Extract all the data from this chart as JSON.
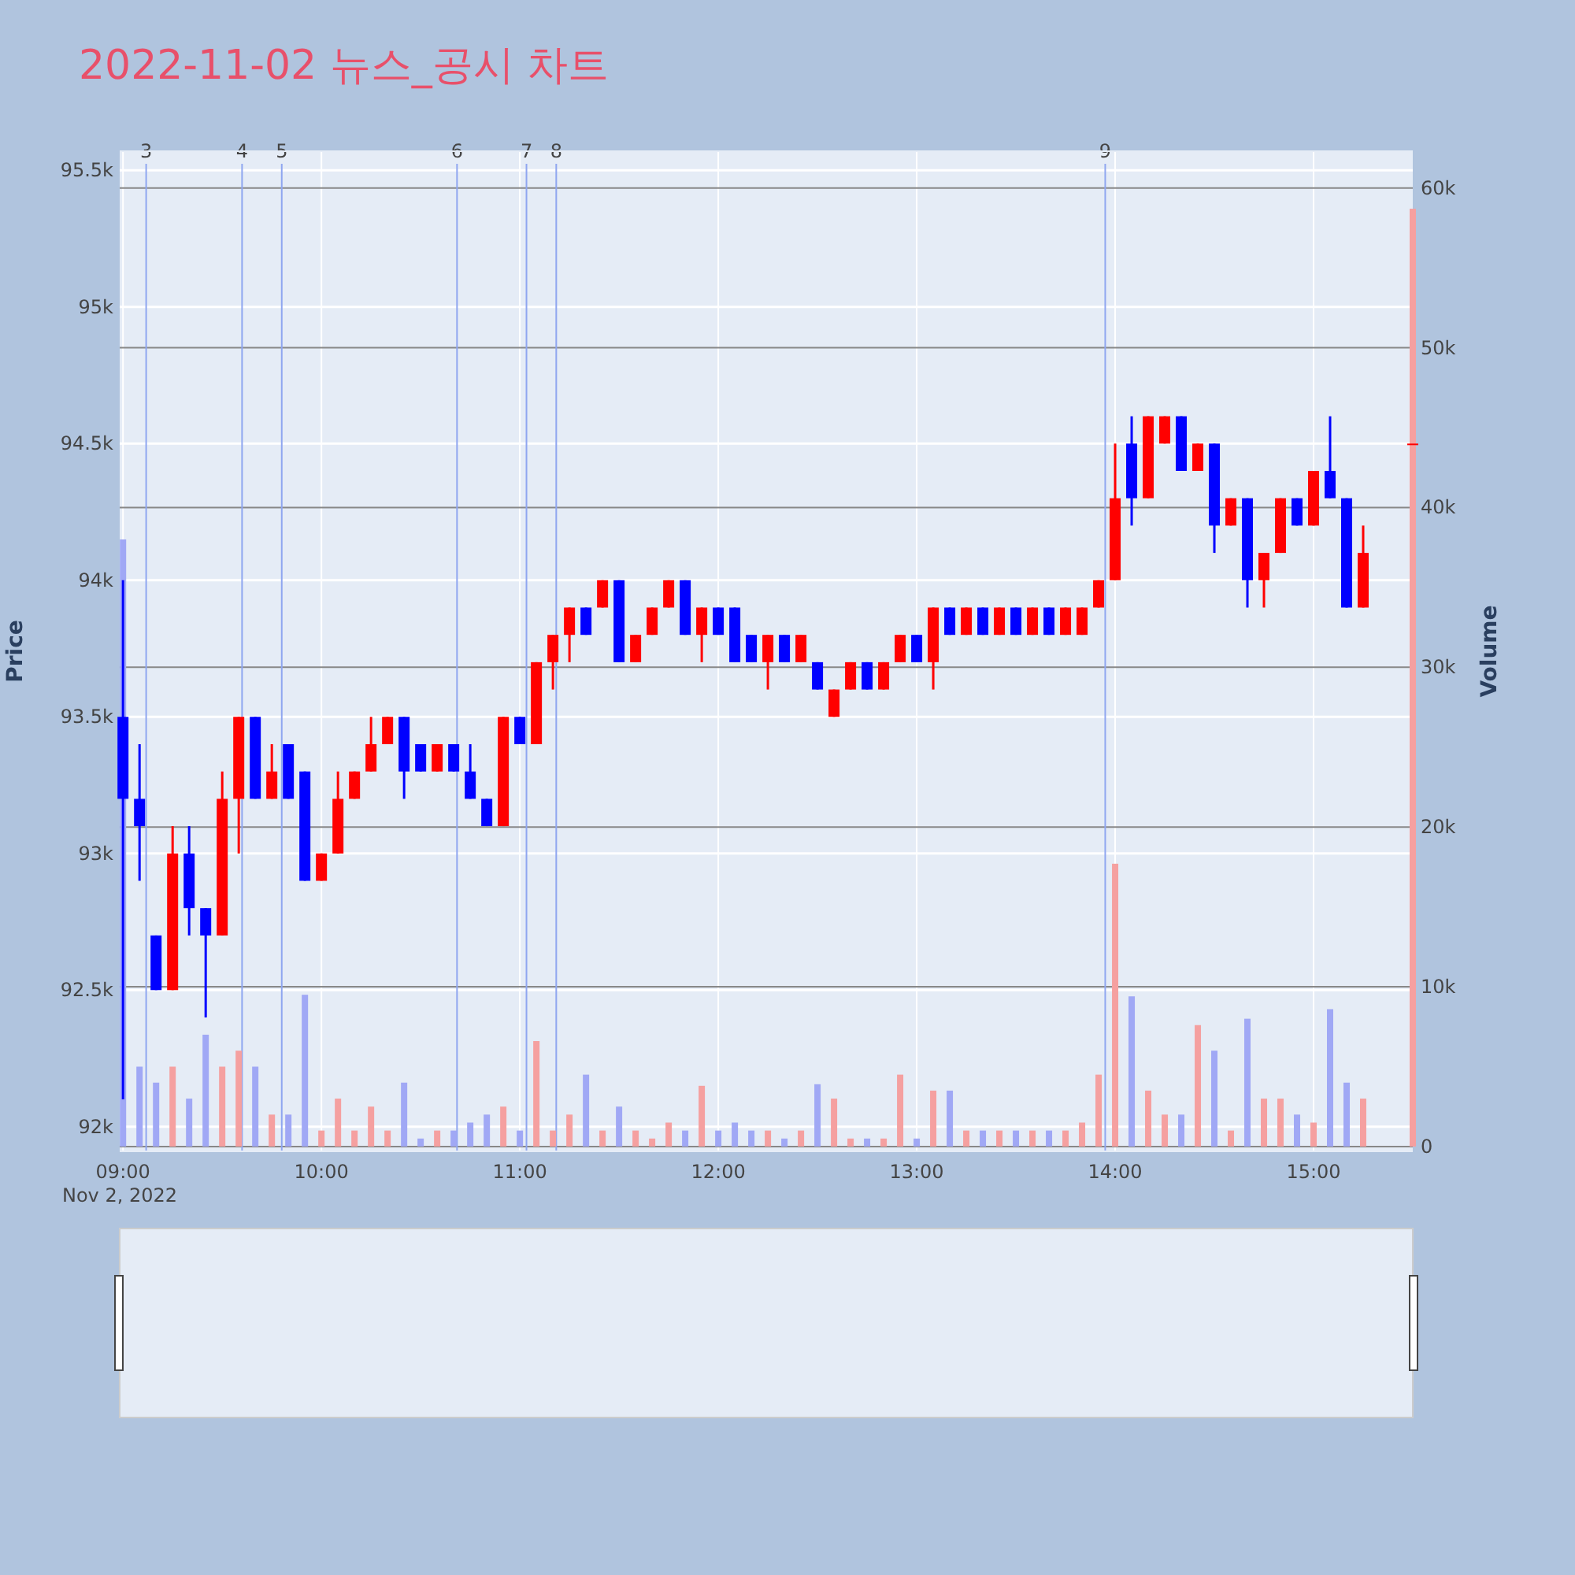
{
  "chart_data": {
    "type": "candlestick",
    "title": "2022-11-02 뉴스_공시 차트",
    "ylabel": "Price",
    "y2label": "Volume",
    "annotations": [
      "Nov 2, 2022"
    ],
    "x": [
      "2022-11-02T09:00",
      "2022-11-02T09:05",
      "2022-11-02T09:10",
      "2022-11-02T09:15",
      "2022-11-02T09:20",
      "2022-11-02T09:25",
      "2022-11-02T09:30",
      "2022-11-02T09:35",
      "2022-11-02T09:40",
      "2022-11-02T09:45",
      "2022-11-02T09:50",
      "2022-11-02T09:55",
      "2022-11-02T10:00",
      "2022-11-02T10:05",
      "2022-11-02T10:10",
      "2022-11-02T10:15",
      "2022-11-02T10:20",
      "2022-11-02T10:25",
      "2022-11-02T10:30",
      "2022-11-02T10:35",
      "2022-11-02T10:40",
      "2022-11-02T10:45",
      "2022-11-02T10:50",
      "2022-11-02T10:55",
      "2022-11-02T11:00",
      "2022-11-02T11:05",
      "2022-11-02T11:10",
      "2022-11-02T11:15",
      "2022-11-02T11:20",
      "2022-11-02T11:25",
      "2022-11-02T11:30",
      "2022-11-02T11:35",
      "2022-11-02T11:40",
      "2022-11-02T11:45",
      "2022-11-02T11:50",
      "2022-11-02T11:55",
      "2022-11-02T12:00",
      "2022-11-02T12:05",
      "2022-11-02T12:10",
      "2022-11-02T12:15",
      "2022-11-02T12:20",
      "2022-11-02T12:25",
      "2022-11-02T12:30",
      "2022-11-02T12:35",
      "2022-11-02T12:40",
      "2022-11-02T12:45",
      "2022-11-02T12:50",
      "2022-11-02T12:55",
      "2022-11-02T13:00",
      "2022-11-02T13:05",
      "2022-11-02T13:10",
      "2022-11-02T13:15",
      "2022-11-02T13:20",
      "2022-11-02T13:25",
      "2022-11-02T13:30",
      "2022-11-02T13:35",
      "2022-11-02T13:40",
      "2022-11-02T13:45",
      "2022-11-02T13:50",
      "2022-11-02T13:55",
      "2022-11-02T14:00",
      "2022-11-02T14:05",
      "2022-11-02T14:10",
      "2022-11-02T14:15",
      "2022-11-02T14:20",
      "2022-11-02T14:25",
      "2022-11-02T14:30",
      "2022-11-02T14:35",
      "2022-11-02T14:40",
      "2022-11-02T14:45",
      "2022-11-02T14:50",
      "2022-11-02T14:55",
      "2022-11-02T15:00",
      "2022-11-02T15:05",
      "2022-11-02T15:10",
      "2022-11-02T15:15",
      "2022-11-02T15:30"
    ],
    "series": [
      {
        "ohlc": [
          [
            93500,
            94000,
            92100,
            93200
          ],
          [
            93200,
            93400,
            92900,
            93100
          ],
          [
            92700,
            92700,
            92500,
            92500
          ],
          [
            92500,
            93100,
            92500,
            93000
          ],
          [
            93000,
            93100,
            92700,
            92800
          ],
          [
            92800,
            92800,
            92400,
            92700
          ],
          [
            92700,
            93300,
            92700,
            93200
          ],
          [
            93200,
            93500,
            93000,
            93500
          ],
          [
            93500,
            93500,
            93200,
            93200
          ],
          [
            93200,
            93400,
            93200,
            93300
          ],
          [
            93400,
            93400,
            93200,
            93200
          ],
          [
            93300,
            93300,
            92900,
            92900
          ],
          [
            92900,
            93000,
            92900,
            93000
          ],
          [
            93000,
            93300,
            93000,
            93200
          ],
          [
            93200,
            93300,
            93200,
            93300
          ],
          [
            93300,
            93500,
            93300,
            93400
          ],
          [
            93400,
            93500,
            93400,
            93500
          ],
          [
            93500,
            93500,
            93200,
            93300
          ],
          [
            93400,
            93400,
            93300,
            93300
          ],
          [
            93300,
            93400,
            93300,
            93400
          ],
          [
            93400,
            93400,
            93300,
            93300
          ],
          [
            93300,
            93400,
            93200,
            93200
          ],
          [
            93200,
            93200,
            93100,
            93100
          ],
          [
            93100,
            93500,
            93100,
            93500
          ],
          [
            93500,
            93500,
            93400,
            93400
          ],
          [
            93400,
            93700,
            93400,
            93700
          ],
          [
            93700,
            93800,
            93600,
            93800
          ],
          [
            93800,
            93900,
            93700,
            93900
          ],
          [
            93900,
            93900,
            93800,
            93800
          ],
          [
            93900,
            94000,
            93900,
            94000
          ],
          [
            94000,
            94000,
            93700,
            93700
          ],
          [
            93700,
            93800,
            93700,
            93800
          ],
          [
            93800,
            93900,
            93800,
            93900
          ],
          [
            93900,
            94000,
            93900,
            94000
          ],
          [
            94000,
            94000,
            93800,
            93800
          ],
          [
            93800,
            93900,
            93700,
            93900
          ],
          [
            93900,
            93900,
            93800,
            93800
          ],
          [
            93900,
            93900,
            93700,
            93700
          ],
          [
            93800,
            93800,
            93700,
            93700
          ],
          [
            93700,
            93800,
            93600,
            93800
          ],
          [
            93800,
            93800,
            93700,
            93700
          ],
          [
            93700,
            93800,
            93700,
            93800
          ],
          [
            93700,
            93700,
            93600,
            93600
          ],
          [
            93500,
            93600,
            93500,
            93600
          ],
          [
            93600,
            93700,
            93600,
            93700
          ],
          [
            93700,
            93700,
            93600,
            93600
          ],
          [
            93600,
            93700,
            93600,
            93700
          ],
          [
            93700,
            93800,
            93700,
            93800
          ],
          [
            93800,
            93800,
            93700,
            93700
          ],
          [
            93700,
            93900,
            93600,
            93900
          ],
          [
            93900,
            93900,
            93800,
            93800
          ],
          [
            93800,
            93900,
            93800,
            93900
          ],
          [
            93900,
            93900,
            93800,
            93800
          ],
          [
            93800,
            93900,
            93800,
            93900
          ],
          [
            93900,
            93900,
            93800,
            93800
          ],
          [
            93800,
            93900,
            93800,
            93900
          ],
          [
            93900,
            93900,
            93800,
            93800
          ],
          [
            93800,
            93900,
            93800,
            93900
          ],
          [
            93800,
            93900,
            93800,
            93900
          ],
          [
            93900,
            94000,
            93900,
            94000
          ],
          [
            94000,
            94500,
            94000,
            94300
          ],
          [
            94500,
            94600,
            94200,
            94300
          ],
          [
            94300,
            94600,
            94300,
            94600
          ],
          [
            94500,
            94600,
            94500,
            94600
          ],
          [
            94600,
            94600,
            94400,
            94400
          ],
          [
            94400,
            94500,
            94400,
            94500
          ],
          [
            94500,
            94500,
            94100,
            94200
          ],
          [
            94200,
            94300,
            94200,
            94300
          ],
          [
            94300,
            94300,
            93900,
            94000
          ],
          [
            94000,
            94100,
            93900,
            94100
          ],
          [
            94100,
            94300,
            94100,
            94300
          ],
          [
            94300,
            94300,
            94200,
            94200
          ],
          [
            94200,
            94400,
            94200,
            94400
          ],
          [
            94400,
            94600,
            94300,
            94300
          ],
          [
            94300,
            94300,
            93900,
            93900
          ],
          [
            93900,
            94200,
            93900,
            94100
          ],
          [
            94500,
            94500,
            94500,
            94500
          ]
        ],
        "colors": [
          "#0000ff",
          "#0000ff",
          "#0000ff",
          "#ff0000",
          "#0000ff",
          "#0000ff",
          "#ff0000",
          "#ff0000",
          "#0000ff",
          "#ff0000",
          "#0000ff",
          "#0000ff",
          "#ff0000",
          "#ff0000",
          "#ff0000",
          "#ff0000",
          "#ff0000",
          "#0000ff",
          "#0000ff",
          "#ff0000",
          "#0000ff",
          "#0000ff",
          "#0000ff",
          "#ff0000",
          "#0000ff",
          "#ff0000",
          "#ff0000",
          "#ff0000",
          "#0000ff",
          "#ff0000",
          "#0000ff",
          "#ff0000",
          "#ff0000",
          "#ff0000",
          "#0000ff",
          "#ff0000",
          "#0000ff",
          "#0000ff",
          "#0000ff",
          "#ff0000",
          "#0000ff",
          "#ff0000",
          "#0000ff",
          "#ff0000",
          "#ff0000",
          "#0000ff",
          "#ff0000",
          "#ff0000",
          "#0000ff",
          "#ff0000",
          "#0000ff",
          "#ff0000",
          "#0000ff",
          "#ff0000",
          "#0000ff",
          "#ff0000",
          "#0000ff",
          "#ff0000",
          "#ff0000",
          "#ff0000",
          "#ff0000",
          "#0000ff",
          "#ff0000",
          "#ff0000",
          "#0000ff",
          "#ff0000",
          "#0000ff",
          "#ff0000",
          "#0000ff",
          "#ff0000",
          "#ff0000",
          "#0000ff",
          "#ff0000",
          "#0000ff",
          "#0000ff",
          "#ff0000",
          "#ff0000"
        ]
      },
      {
        "type": "bar",
        "axis": "y2",
        "values": [
          38000,
          5000,
          4000,
          5000,
          3000,
          7000,
          5000,
          6000,
          5000,
          2000,
          2000,
          9500,
          1000,
          3000,
          1000,
          2500,
          1000,
          4000,
          500,
          1000,
          1000,
          1500,
          2000,
          2500,
          1000,
          6600,
          1000,
          2000,
          4500,
          1000,
          2500,
          1000,
          500,
          1500,
          1000,
          3800,
          1000,
          1500,
          1000,
          1000,
          500,
          1000,
          3900,
          3000,
          500,
          500,
          500,
          4500,
          500,
          3500,
          3500,
          1000,
          1000,
          1000,
          1000,
          1000,
          1000,
          1000,
          1500,
          4500,
          17700,
          9400,
          3500,
          2000,
          2000,
          7600,
          6000,
          1000,
          8000,
          3000,
          3000,
          2000,
          1500,
          8600,
          4000,
          3000,
          58700
        ],
        "colors": [
          "#a0a8f5",
          "#a0a8f5",
          "#a0a8f5",
          "#f5a0a0",
          "#a0a8f5",
          "#a0a8f5",
          "#f5a0a0",
          "#f5a0a0",
          "#a0a8f5",
          "#f5a0a0",
          "#a0a8f5",
          "#a0a8f5",
          "#f5a0a0",
          "#f5a0a0",
          "#f5a0a0",
          "#f5a0a0",
          "#f5a0a0",
          "#a0a8f5",
          "#a0a8f5",
          "#f5a0a0",
          "#a0a8f5",
          "#a0a8f5",
          "#a0a8f5",
          "#f5a0a0",
          "#a0a8f5",
          "#f5a0a0",
          "#f5a0a0",
          "#f5a0a0",
          "#a0a8f5",
          "#f5a0a0",
          "#a0a8f5",
          "#f5a0a0",
          "#f5a0a0",
          "#f5a0a0",
          "#a0a8f5",
          "#f5a0a0",
          "#a0a8f5",
          "#a0a8f5",
          "#a0a8f5",
          "#f5a0a0",
          "#a0a8f5",
          "#f5a0a0",
          "#a0a8f5",
          "#f5a0a0",
          "#f5a0a0",
          "#a0a8f5",
          "#f5a0a0",
          "#f5a0a0",
          "#a0a8f5",
          "#f5a0a0",
          "#a0a8f5",
          "#f5a0a0",
          "#a0a8f5",
          "#f5a0a0",
          "#a0a8f5",
          "#f5a0a0",
          "#a0a8f5",
          "#f5a0a0",
          "#f5a0a0",
          "#f5a0a0",
          "#f5a0a0",
          "#a0a8f5",
          "#f5a0a0",
          "#f5a0a0",
          "#a0a8f5",
          "#f5a0a0",
          "#a0a8f5",
          "#f5a0a0",
          "#a0a8f5",
          "#f5a0a0",
          "#f5a0a0",
          "#a0a8f5",
          "#f5a0a0",
          "#a0a8f5",
          "#a0a8f5",
          "#f5a0a0",
          "#f5a0a0"
        ]
      }
    ],
    "xlim": [
      "2022-11-02T08:59",
      "2022-11-02T15:30"
    ],
    "xticks": [
      {
        "value": "2022-11-02T09:00",
        "label": "09:00"
      },
      {
        "value": "2022-11-02T10:00",
        "label": "10:00"
      },
      {
        "value": "2022-11-02T11:00",
        "label": "11:00"
      },
      {
        "value": "2022-11-02T12:00",
        "label": "12:00"
      },
      {
        "value": "2022-11-02T13:00",
        "label": "13:00"
      },
      {
        "value": "2022-11-02T14:00",
        "label": "14:00"
      },
      {
        "value": "2022-11-02T15:00",
        "label": "15:00"
      }
    ],
    "ylim": [
      91910,
      95570
    ],
    "yticks": [
      {
        "value": 92000,
        "label": "92k"
      },
      {
        "value": 92500,
        "label": "92.5k"
      },
      {
        "value": 93000,
        "label": "93k"
      },
      {
        "value": 93500,
        "label": "93.5k"
      },
      {
        "value": 94000,
        "label": "94k"
      },
      {
        "value": 94500,
        "label": "94.5k"
      },
      {
        "value": 95000,
        "label": "95k"
      },
      {
        "value": 95500,
        "label": "95.5k"
      }
    ],
    "y2lim": [
      -300,
      62300
    ],
    "y2ticks": [
      0,
      {
        "value": 10000,
        "label": "10k"
      },
      {
        "value": 20000,
        "label": "20k"
      },
      {
        "value": 30000,
        "label": "30k"
      },
      {
        "value": 40000,
        "label": "40k"
      },
      {
        "value": 50000,
        "label": "50k"
      },
      {
        "value": 60000,
        "label": "60k"
      }
    ],
    "ref_lines": [
      {
        "axis": "x",
        "value": "2022-11-02T09:07",
        "label": "3",
        "color": "#8fa6f0"
      },
      {
        "axis": "x",
        "value": "2022-11-02T09:36",
        "label": "4",
        "color": "#8fa6f0"
      },
      {
        "axis": "x",
        "value": "2022-11-02T09:48",
        "label": "5",
        "color": "#8fa6f0"
      },
      {
        "axis": "x",
        "value": "2022-11-02T10:41",
        "label": "6",
        "color": "#8fa6f0"
      },
      {
        "axis": "x",
        "value": "2022-11-02T11:02",
        "label": "7",
        "color": "#8fa6f0"
      },
      {
        "axis": "x",
        "value": "2022-11-02T11:11",
        "label": "8",
        "color": "#8fa6f0"
      },
      {
        "axis": "x",
        "value": "2022-11-02T13:57",
        "label": "9",
        "color": "#8fa6f0"
      }
    ],
    "grid": true
  }
}
